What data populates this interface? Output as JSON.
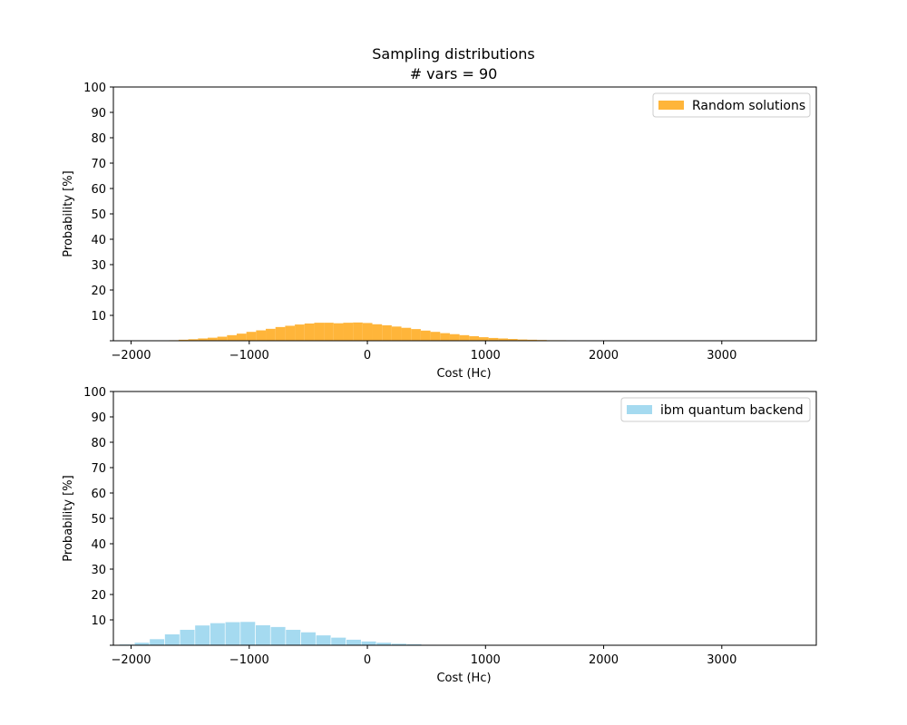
{
  "figure": {
    "title_line1": "Sampling distributions",
    "title_line2": "# vars = 90"
  },
  "chart_data": [
    {
      "type": "bar",
      "name": "top",
      "xlabel": "Cost (Hc)",
      "ylabel": "Probability [%]",
      "xlim": [
        -2150,
        3800
      ],
      "ylim": [
        0,
        100
      ],
      "xticks": [
        -2000,
        -1000,
        0,
        1000,
        2000,
        3000
      ],
      "yticks": [
        10,
        20,
        30,
        40,
        50,
        60,
        70,
        80,
        90,
        100
      ],
      "legend_position": "top-right",
      "grid": false,
      "series": [
        {
          "name": "Random solutions",
          "color": "#ffb12f",
          "bin_width": 82,
          "bins_start": [
            -1680,
            -1598,
            -1516,
            -1434,
            -1352,
            -1270,
            -1188,
            -1106,
            -1024,
            -942,
            -860,
            -778,
            -696,
            -614,
            -532,
            -450,
            -368,
            -286,
            -204,
            -122,
            -40,
            42,
            124,
            206,
            288,
            370,
            452,
            534,
            616,
            698,
            780,
            862,
            944,
            1026,
            1108,
            1190,
            1272,
            1354,
            1436,
            1518,
            1600,
            1682,
            1764,
            1846,
            1928,
            2010
          ],
          "values": [
            0.2,
            0.4,
            0.6,
            0.9,
            1.2,
            1.6,
            2.2,
            2.8,
            3.5,
            4.1,
            4.7,
            5.4,
            5.9,
            6.4,
            6.8,
            7.1,
            7.1,
            6.9,
            7.1,
            7.2,
            7.0,
            6.5,
            6.1,
            5.6,
            5.1,
            4.6,
            4.0,
            3.5,
            3.0,
            2.6,
            2.2,
            1.8,
            1.4,
            1.1,
            0.9,
            0.7,
            0.5,
            0.4,
            0.3,
            0.2,
            0.2,
            0.1,
            0.1,
            0.1,
            0.1,
            0.1
          ]
        }
      ]
    },
    {
      "type": "bar",
      "name": "bottom",
      "xlabel": "Cost (Hc)",
      "ylabel": "Probability [%]",
      "xlim": [
        -2150,
        3800
      ],
      "ylim": [
        0,
        100
      ],
      "xticks": [
        -2000,
        -1000,
        0,
        1000,
        2000,
        3000
      ],
      "yticks": [
        10,
        20,
        30,
        40,
        50,
        60,
        70,
        80,
        90,
        100
      ],
      "legend_position": "top-right",
      "grid": false,
      "series": [
        {
          "name": "ibm quantum backend",
          "color": "#87ceeb",
          "alpha": 0.75,
          "bin_width": 128,
          "bins_start": [
            -2100,
            -1972,
            -1844,
            -1716,
            -1588,
            -1460,
            -1332,
            -1204,
            -1076,
            -948,
            -820,
            -692,
            -564,
            -436,
            -308,
            -180,
            -52,
            76,
            204,
            332,
            460,
            588,
            716
          ],
          "values": [
            0.4,
            1.1,
            2.5,
            4.4,
            6.2,
            7.9,
            8.8,
            9.2,
            9.3,
            8.0,
            7.3,
            6.2,
            5.2,
            4.0,
            3.1,
            2.3,
            1.6,
            1.1,
            0.7,
            0.5,
            0.3,
            0.2,
            0.1
          ]
        }
      ]
    }
  ]
}
